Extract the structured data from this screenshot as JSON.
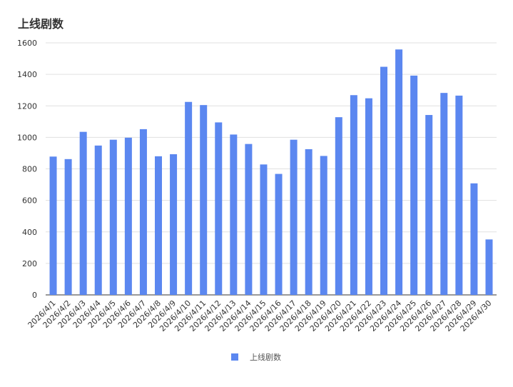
{
  "chart_data": {
    "type": "bar",
    "title": "上线剧数",
    "xlabel": "",
    "ylabel": "",
    "ylim": [
      0,
      1600
    ],
    "yticks": [
      0,
      200,
      400,
      600,
      800,
      1000,
      1200,
      1400,
      1600
    ],
    "grid": true,
    "legend_position": "bottom",
    "categories": [
      "2026/4/1",
      "2026/4/2",
      "2026/4/3",
      "2026/4/4",
      "2026/4/5",
      "2026/4/6",
      "2026/4/7",
      "2026/4/8",
      "2026/4/9",
      "2026/4/10",
      "2026/4/11",
      "2026/4/12",
      "2026/4/13",
      "2026/4/14",
      "2026/4/15",
      "2026/4/16",
      "2026/4/17",
      "2026/4/18",
      "2026/4/19",
      "2026/4/20",
      "2026/4/21",
      "2026/4/22",
      "2026/4/23",
      "2026/4/24",
      "2026/4/25",
      "2026/4/26",
      "2026/4/27",
      "2026/4/28",
      "2026/4/29",
      "2026/4/30"
    ],
    "series": [
      {
        "name": "上线剧数",
        "color": "#5b87f0",
        "values": [
          878,
          862,
          1035,
          948,
          985,
          998,
          1052,
          880,
          893,
          1225,
          1205,
          1095,
          1018,
          958,
          828,
          768,
          985,
          925,
          882,
          1128,
          1268,
          1248,
          1448,
          1558,
          1392,
          1142,
          1282,
          1265,
          708,
          352
        ]
      }
    ]
  }
}
